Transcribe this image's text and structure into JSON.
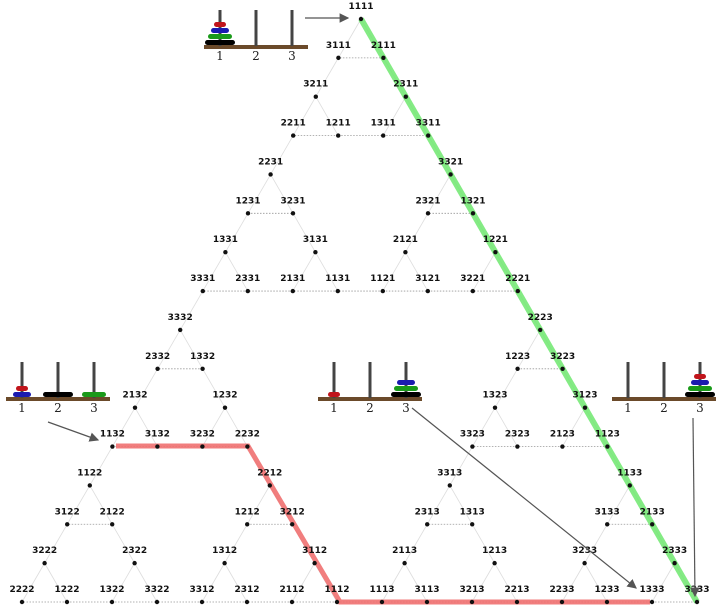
{
  "nodes": [
    "1111",
    "1112",
    "1113",
    "1121",
    "1122",
    "1123",
    "1131",
    "1132",
    "1133",
    "1211",
    "1212",
    "1213",
    "1221",
    "1222",
    "1223",
    "1231",
    "1232",
    "1233",
    "1311",
    "1312",
    "1313",
    "1321",
    "1322",
    "1323",
    "1331",
    "1332",
    "1333",
    "2111",
    "2112",
    "2113",
    "2121",
    "2122",
    "2123",
    "2131",
    "2132",
    "2133",
    "2211",
    "2212",
    "2213",
    "2221",
    "2222",
    "2223",
    "2231",
    "2232",
    "2233",
    "2311",
    "2312",
    "2313",
    "2321",
    "2322",
    "2323",
    "2331",
    "2332",
    "2333",
    "3111",
    "3112",
    "3113",
    "3121",
    "3122",
    "3123",
    "3131",
    "3132",
    "3133",
    "3211",
    "3212",
    "3213",
    "3221",
    "3222",
    "3223",
    "3231",
    "3232",
    "3233",
    "3311",
    "3312",
    "3313",
    "3321",
    "3322",
    "3323",
    "3331",
    "3332",
    "3333"
  ],
  "pegs": [
    {
      "labels": [
        "1",
        "2",
        "3"
      ]
    },
    {
      "labels": [
        "1",
        "2",
        "3"
      ]
    },
    {
      "labels": [
        "1",
        "2",
        "3"
      ]
    },
    {
      "labels": [
        "1",
        "2",
        "3"
      ]
    }
  ]
}
